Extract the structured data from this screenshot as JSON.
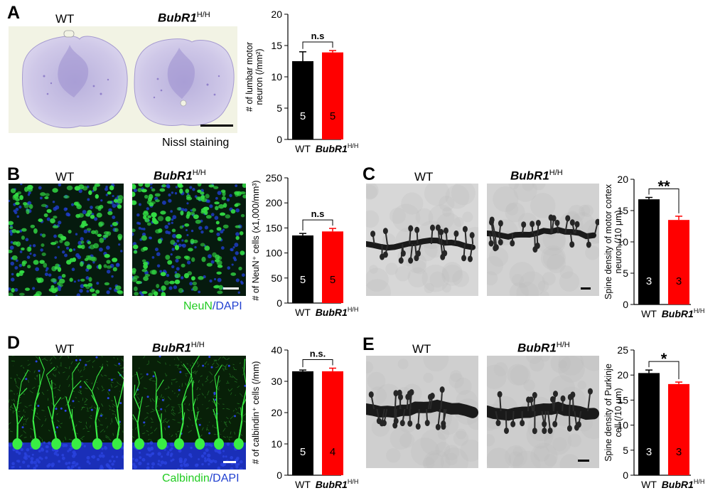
{
  "panels": {
    "A": {
      "letter": "A",
      "wt": "WT",
      "mut": "BubR1",
      "mut_sup": "H/H",
      "caption": "Nissl staining"
    },
    "B": {
      "letter": "B",
      "wt": "WT",
      "mut": "BubR1",
      "mut_sup": "H/H",
      "caption_a": "NeuN",
      "caption_b": "/DAPI"
    },
    "C": {
      "letter": "C",
      "wt": "WT",
      "mut": "BubR1",
      "mut_sup": "H/H"
    },
    "D": {
      "letter": "D",
      "wt": "WT",
      "mut": "BubR1",
      "mut_sup": "H/H",
      "caption_a": "Calbindin",
      "caption_b": "/DAPI"
    },
    "E": {
      "letter": "E",
      "wt": "WT",
      "mut": "BubR1",
      "mut_sup": "H/H"
    }
  },
  "colors": {
    "wt_bar": "#000000",
    "mut_bar": "#ff0000",
    "neun_green": "#22cc22",
    "dapi_blue": "#1f3fd0"
  },
  "chart_data": [
    {
      "id": "A",
      "type": "bar",
      "categories": [
        "WT",
        "BubR1H/H"
      ],
      "cat_main": [
        "WT",
        "BubR1"
      ],
      "cat_sup": [
        "",
        "H/H"
      ],
      "values": [
        12.5,
        13.9
      ],
      "errors": [
        1.5,
        0.3
      ],
      "n_labels": [
        "5",
        "5"
      ],
      "ylabel": "# of lumbar motor neuron (/mm²)",
      "ylabel_lines": [
        "# of lumbar motor",
        "neuron (/mm²)"
      ],
      "ylim": [
        0,
        20
      ],
      "ticks": [
        0,
        5,
        10,
        15,
        20
      ],
      "tick_labels": [
        "0",
        "5",
        "10",
        "15",
        "20"
      ],
      "significance": "n.s"
    },
    {
      "id": "B",
      "type": "bar",
      "categories": [
        "WT",
        "BubR1H/H"
      ],
      "cat_main": [
        "WT",
        "BubR1"
      ],
      "cat_sup": [
        "",
        "H/H"
      ],
      "values": [
        135,
        143
      ],
      "errors": [
        4,
        6
      ],
      "n_labels": [
        "5",
        "5"
      ],
      "ylabel": "# of NeuN⁺ cells (x1,000/mm³)",
      "ylabel_lines": [
        "# of NeuN⁺ cells (x1,000/mm³)"
      ],
      "ylim": [
        0,
        250
      ],
      "ticks": [
        0,
        50,
        100,
        150,
        200,
        250
      ],
      "tick_labels": [
        "0",
        "50",
        "100",
        "150",
        "200",
        "250"
      ],
      "significance": "n.s"
    },
    {
      "id": "C",
      "type": "bar",
      "categories": [
        "WT",
        "BubR1H/H"
      ],
      "cat_main": [
        "WT",
        "BubR1"
      ],
      "cat_sup": [
        "",
        "H/H"
      ],
      "values": [
        16.8,
        13.5
      ],
      "errors": [
        0.3,
        0.6
      ],
      "n_labels": [
        "3",
        "3"
      ],
      "ylabel": "Spine density of motor cortex neuron (/10 μm)",
      "ylabel_lines": [
        "Spine density of motor cortex",
        "neuron (/10 μm)"
      ],
      "ylim": [
        0,
        20
      ],
      "ticks": [
        0,
        5,
        10,
        15,
        20
      ],
      "tick_labels": [
        "0",
        "5",
        "10",
        "15",
        "20"
      ],
      "significance": "**"
    },
    {
      "id": "D",
      "type": "bar",
      "categories": [
        "WT",
        "BubR1H/H"
      ],
      "cat_main": [
        "WT",
        "BubR1"
      ],
      "cat_sup": [
        "",
        "H/H"
      ],
      "values": [
        33.2,
        33.2
      ],
      "errors": [
        0.4,
        1.0
      ],
      "n_labels": [
        "5",
        "4"
      ],
      "ylabel": "# of calbindin⁺ cells (/mm)",
      "ylabel_lines": [
        "# of calbindin⁺ cells (/mm)"
      ],
      "ylim": [
        0,
        40
      ],
      "ticks": [
        0,
        10,
        20,
        30,
        40
      ],
      "tick_labels": [
        "0",
        "10",
        "20",
        "30",
        "40"
      ],
      "significance": "n.s."
    },
    {
      "id": "E",
      "type": "bar",
      "categories": [
        "WT",
        "BubR1H/H"
      ],
      "cat_main": [
        "WT",
        "BubR1"
      ],
      "cat_sup": [
        "",
        "H/H"
      ],
      "values": [
        20.4,
        18.2
      ],
      "errors": [
        0.6,
        0.4
      ],
      "n_labels": [
        "3",
        "3"
      ],
      "ylabel": "Spine density of Purkinje cell (/10 μm)",
      "ylabel_lines": [
        "Spine density of Purkinje",
        "cell (/10 μm)"
      ],
      "ylim": [
        0,
        25
      ],
      "ticks": [
        0,
        5,
        10,
        15,
        20,
        25
      ],
      "tick_labels": [
        "0",
        "5",
        "10",
        "15",
        "20",
        "25"
      ],
      "significance": "*"
    }
  ]
}
